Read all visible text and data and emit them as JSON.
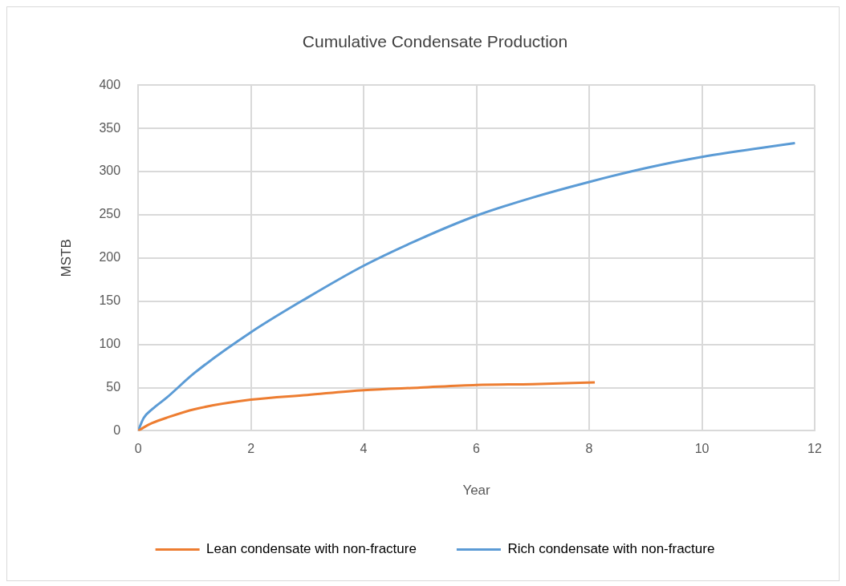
{
  "chart_data": {
    "type": "line",
    "title": "Cumulative Condensate Production",
    "xlabel": "Year",
    "ylabel": "MSTB",
    "xlim": [
      0,
      12
    ],
    "xticks": [
      0,
      2,
      4,
      6,
      8,
      10,
      12
    ],
    "ylim": [
      0,
      400
    ],
    "yticks": [
      0,
      50,
      100,
      150,
      200,
      250,
      300,
      350,
      400
    ],
    "grid": true,
    "legend": "bottom",
    "marker": "none",
    "series": [
      {
        "name": "Lean condensate with non-fracture",
        "color": "#ed7d31",
        "x": [
          0,
          0.1,
          0.25,
          0.5,
          1,
          2,
          3,
          4,
          5,
          6,
          7,
          8.1
        ],
        "values": [
          0,
          4,
          9,
          15,
          25,
          36,
          41.5,
          47,
          50,
          53,
          54,
          56
        ]
      },
      {
        "name": "Rich condensate with non-fracture",
        "color": "#5b9bd5",
        "x": [
          0,
          0.1,
          0.25,
          0.5,
          1,
          2,
          3,
          4,
          5,
          6,
          7,
          8,
          9,
          10,
          11.65
        ],
        "values": [
          0,
          15,
          25,
          38,
          67,
          114,
          154,
          191,
          222,
          249,
          270,
          288,
          304,
          317,
          333
        ]
      }
    ]
  }
}
